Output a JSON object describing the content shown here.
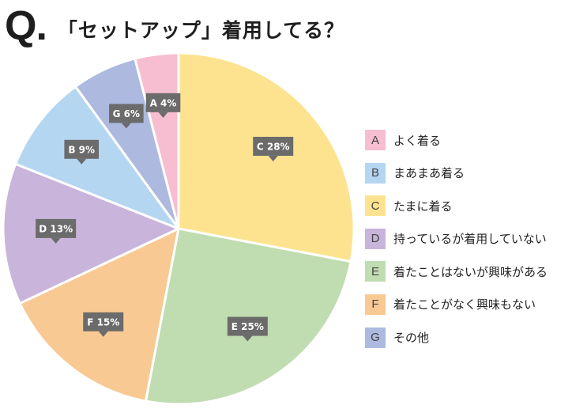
{
  "header": {
    "q_mark": "Q.",
    "question": "「セットアップ」着用してる？"
  },
  "chart_data": {
    "type": "pie",
    "title": "「セットアップ」着用してる？",
    "start_angle_deg": 0,
    "direction": "clockwise",
    "slice_order": [
      "C",
      "E",
      "F",
      "D",
      "B",
      "G",
      "A"
    ],
    "slices": [
      {
        "key": "A",
        "label": "よく着る",
        "value": 4,
        "callout": "A 4%",
        "color": "#f7bdd0"
      },
      {
        "key": "B",
        "label": "まあまあ着る",
        "value": 9,
        "callout": "B 9%",
        "color": "#b5d6f1"
      },
      {
        "key": "C",
        "label": "たまに着る",
        "value": 28,
        "callout": "C 28%",
        "color": "#fde38f"
      },
      {
        "key": "D",
        "label": "持っているが着用していない",
        "value": 13,
        "callout": "D 13%",
        "color": "#c9b4db"
      },
      {
        "key": "E",
        "label": "着たことはないが興味がある",
        "value": 25,
        "callout": "E 25%",
        "color": "#c0dcb1"
      },
      {
        "key": "F",
        "label": "着たことがなく興味もない",
        "value": 15,
        "callout": "F 15%",
        "color": "#f9c994"
      },
      {
        "key": "G",
        "label": "その他",
        "value": 6,
        "callout": "G 6%",
        "color": "#adb9df"
      }
    ],
    "callout_color": "#6b6b6b",
    "legend_position": "right"
  }
}
